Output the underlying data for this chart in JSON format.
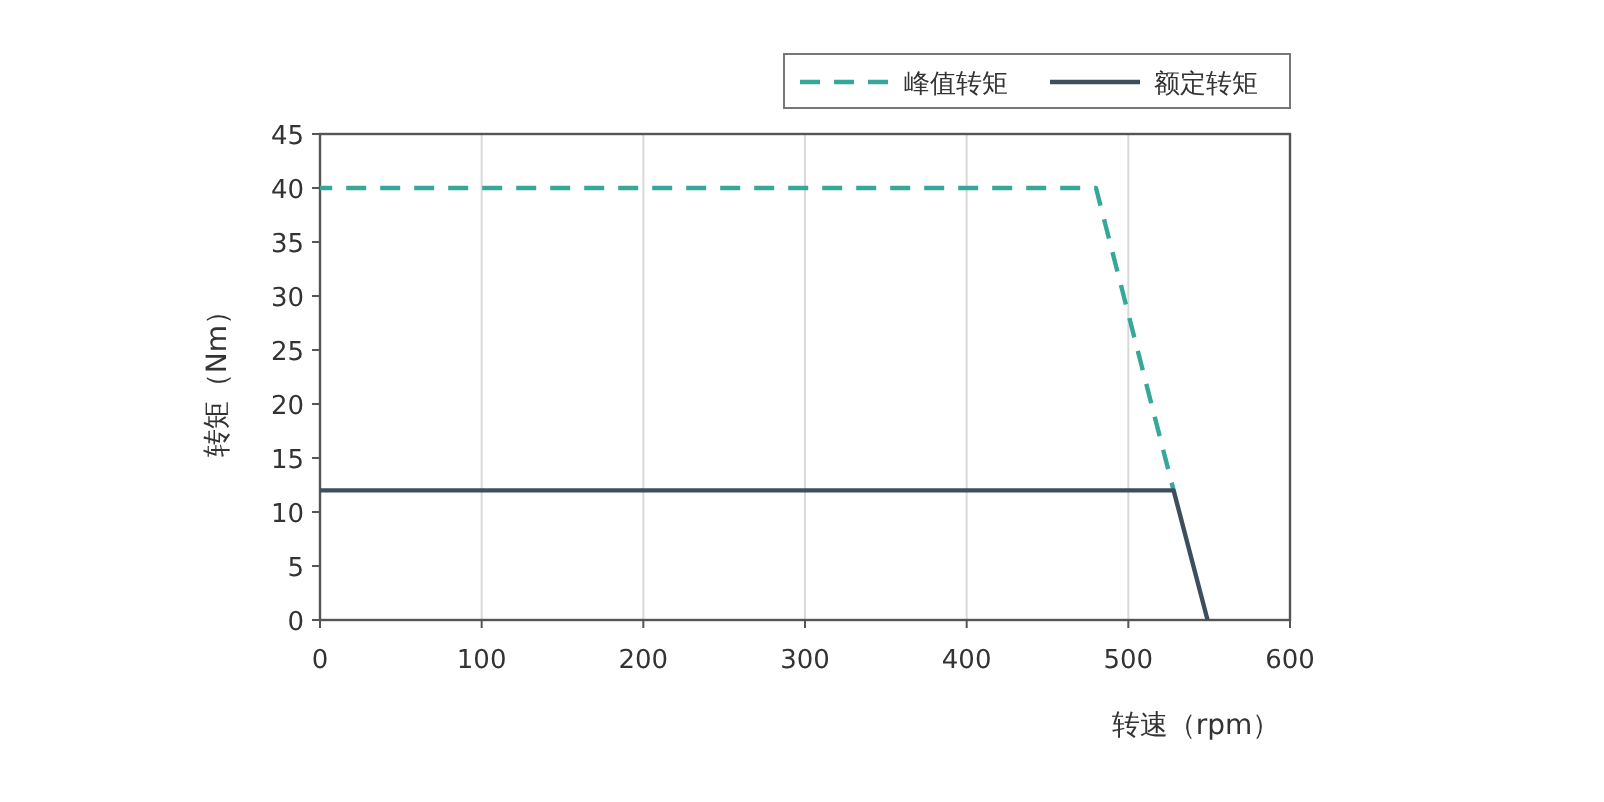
{
  "chart_data": {
    "type": "line",
    "xlabel": "转速（rpm）",
    "ylabel": "转矩（Nm）",
    "series": [
      {
        "name": "峰值转矩",
        "color": "#35a89a",
        "line_style": "dashed",
        "x": [
          0,
          480,
          528
        ],
        "values": [
          40,
          40,
          12
        ]
      },
      {
        "name": "额定转矩",
        "color": "#3d4f5e",
        "line_style": "solid",
        "x": [
          0,
          528,
          549
        ],
        "values": [
          12,
          12,
          0
        ]
      }
    ],
    "xlim": [
      0,
      600
    ],
    "ylim": [
      0,
      45
    ],
    "xticks": [
      0,
      100,
      200,
      300,
      400,
      500,
      600
    ],
    "yticks": [
      0,
      5,
      10,
      15,
      20,
      25,
      30,
      35,
      40,
      45
    ],
    "grid": "x",
    "legend": "top right"
  }
}
